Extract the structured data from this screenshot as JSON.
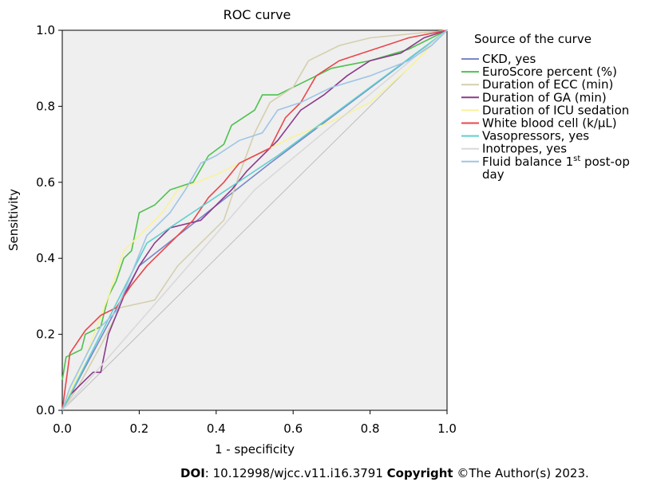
{
  "chart_data": {
    "type": "line",
    "title": "ROC curve",
    "xlabel": "1 - specificity",
    "ylabel": "Sensitivity",
    "xlim": [
      0,
      1
    ],
    "ylim": [
      0,
      1
    ],
    "xticks": [
      "0.0",
      "0.2",
      "0.4",
      "0.6",
      "0.8",
      "1.0"
    ],
    "yticks": [
      "0.0",
      "0.2",
      "0.4",
      "0.6",
      "0.8",
      "1.0"
    ],
    "grid": false,
    "legend": {
      "title": "Source of the curve",
      "placement": "right"
    },
    "series": [
      {
        "name": "CKD, yes",
        "color": "#7b86c8",
        "points": [
          [
            0,
            0
          ],
          [
            0.2,
            0.38
          ],
          [
            0.54,
            0.65
          ],
          [
            1,
            1
          ]
        ]
      },
      {
        "name": "EuroScore percent (%)",
        "color": "#4fc14f",
        "points": [
          [
            0,
            0.08
          ],
          [
            0.01,
            0.14
          ],
          [
            0.05,
            0.16
          ],
          [
            0.06,
            0.2
          ],
          [
            0.1,
            0.22
          ],
          [
            0.12,
            0.3
          ],
          [
            0.14,
            0.34
          ],
          [
            0.16,
            0.4
          ],
          [
            0.18,
            0.42
          ],
          [
            0.2,
            0.52
          ],
          [
            0.24,
            0.54
          ],
          [
            0.28,
            0.58
          ],
          [
            0.34,
            0.6
          ],
          [
            0.38,
            0.67
          ],
          [
            0.42,
            0.7
          ],
          [
            0.44,
            0.75
          ],
          [
            0.5,
            0.79
          ],
          [
            0.52,
            0.83
          ],
          [
            0.56,
            0.83
          ],
          [
            0.62,
            0.86
          ],
          [
            0.7,
            0.9
          ],
          [
            0.8,
            0.92
          ],
          [
            0.9,
            0.95
          ],
          [
            0.96,
            0.98
          ],
          [
            1,
            1
          ]
        ]
      },
      {
        "name": "Duration of ECC (min)",
        "color": "#d4cfae",
        "points": [
          [
            0,
            0
          ],
          [
            0.04,
            0.06
          ],
          [
            0.1,
            0.17
          ],
          [
            0.15,
            0.27
          ],
          [
            0.24,
            0.29
          ],
          [
            0.3,
            0.38
          ],
          [
            0.36,
            0.44
          ],
          [
            0.42,
            0.5
          ],
          [
            0.46,
            0.62
          ],
          [
            0.5,
            0.73
          ],
          [
            0.54,
            0.81
          ],
          [
            0.6,
            0.85
          ],
          [
            0.64,
            0.92
          ],
          [
            0.72,
            0.96
          ],
          [
            0.8,
            0.98
          ],
          [
            1,
            1
          ]
        ]
      },
      {
        "name": "Duration of GA (min)",
        "color": "#8b3a8b",
        "points": [
          [
            0,
            0
          ],
          [
            0.02,
            0.04
          ],
          [
            0.06,
            0.08
          ],
          [
            0.08,
            0.1
          ],
          [
            0.1,
            0.1
          ],
          [
            0.12,
            0.2
          ],
          [
            0.16,
            0.3
          ],
          [
            0.2,
            0.38
          ],
          [
            0.24,
            0.44
          ],
          [
            0.28,
            0.48
          ],
          [
            0.36,
            0.5
          ],
          [
            0.4,
            0.54
          ],
          [
            0.44,
            0.58
          ],
          [
            0.48,
            0.63
          ],
          [
            0.52,
            0.67
          ],
          [
            0.56,
            0.71
          ],
          [
            0.62,
            0.79
          ],
          [
            0.68,
            0.83
          ],
          [
            0.74,
            0.88
          ],
          [
            0.8,
            0.92
          ],
          [
            0.88,
            0.94
          ],
          [
            0.94,
            0.98
          ],
          [
            1,
            1
          ]
        ]
      },
      {
        "name": "Duration of ICU sedation",
        "color": "#f7f39a",
        "points": [
          [
            0,
            0
          ],
          [
            0.06,
            0.14
          ],
          [
            0.12,
            0.3
          ],
          [
            0.16,
            0.42
          ],
          [
            0.2,
            0.46
          ],
          [
            0.26,
            0.52
          ],
          [
            0.3,
            0.58
          ],
          [
            0.4,
            0.62
          ],
          [
            0.5,
            0.67
          ],
          [
            0.6,
            0.72
          ],
          [
            0.7,
            0.76
          ],
          [
            0.8,
            0.81
          ],
          [
            0.9,
            0.9
          ],
          [
            1,
            1
          ]
        ]
      },
      {
        "name": "White blood cell (k/μL)",
        "color": "#e8474b",
        "points": [
          [
            0,
            0
          ],
          [
            0.02,
            0.15
          ],
          [
            0.06,
            0.21
          ],
          [
            0.1,
            0.25
          ],
          [
            0.14,
            0.27
          ],
          [
            0.18,
            0.33
          ],
          [
            0.22,
            0.38
          ],
          [
            0.26,
            0.42
          ],
          [
            0.3,
            0.46
          ],
          [
            0.34,
            0.5
          ],
          [
            0.38,
            0.56
          ],
          [
            0.42,
            0.6
          ],
          [
            0.46,
            0.65
          ],
          [
            0.5,
            0.67
          ],
          [
            0.54,
            0.69
          ],
          [
            0.58,
            0.77
          ],
          [
            0.62,
            0.81
          ],
          [
            0.66,
            0.88
          ],
          [
            0.72,
            0.92
          ],
          [
            0.78,
            0.94
          ],
          [
            0.84,
            0.96
          ],
          [
            0.9,
            0.98
          ],
          [
            1,
            1
          ]
        ]
      },
      {
        "name": "Vasopressors, yes",
        "color": "#5fcfcf",
        "points": [
          [
            0,
            0
          ],
          [
            0.22,
            0.44
          ],
          [
            0.56,
            0.67
          ],
          [
            1,
            1
          ]
        ]
      },
      {
        "name": "Inotropes, yes",
        "color": "#d9d9d9",
        "points": [
          [
            0,
            0
          ],
          [
            0.5,
            0.58
          ],
          [
            1,
            1
          ]
        ]
      },
      {
        "name": "Fluid balance 1st post-op day",
        "color": "#9ec5e6",
        "points": [
          [
            0,
            0
          ],
          [
            0.02,
            0.06
          ],
          [
            0.06,
            0.14
          ],
          [
            0.1,
            0.22
          ],
          [
            0.14,
            0.26
          ],
          [
            0.18,
            0.36
          ],
          [
            0.22,
            0.46
          ],
          [
            0.28,
            0.52
          ],
          [
            0.32,
            0.58
          ],
          [
            0.36,
            0.65
          ],
          [
            0.4,
            0.67
          ],
          [
            0.46,
            0.71
          ],
          [
            0.52,
            0.73
          ],
          [
            0.56,
            0.79
          ],
          [
            0.62,
            0.81
          ],
          [
            0.7,
            0.85
          ],
          [
            0.8,
            0.88
          ],
          [
            0.9,
            0.92
          ],
          [
            0.96,
            0.96
          ],
          [
            1,
            1
          ]
        ]
      }
    ]
  },
  "legend_items": [
    {
      "label": "CKD, yes"
    },
    {
      "label": "EuroScore percent (%)"
    },
    {
      "label": "Duration of ECC (min)"
    },
    {
      "label": "Duration of GA (min)"
    },
    {
      "label": "Duration of ICU sedation"
    },
    {
      "label": "White blood cell (k/μL)"
    },
    {
      "label": "Vasopressors, yes"
    },
    {
      "label": "Inotropes, yes"
    },
    {
      "label_line1_prefix": "Fluid balance 1",
      "label_line1_sup": "st",
      "label_line1_suffix": " post-op",
      "label_line2": "day"
    }
  ],
  "footer": {
    "doi_label": "DOI",
    "doi_value": ": 10.12998/wjcc.v11.i16.3791 ",
    "copyright_label": "Copyright",
    "copyright_value": " ©The Author(s) 2023."
  }
}
